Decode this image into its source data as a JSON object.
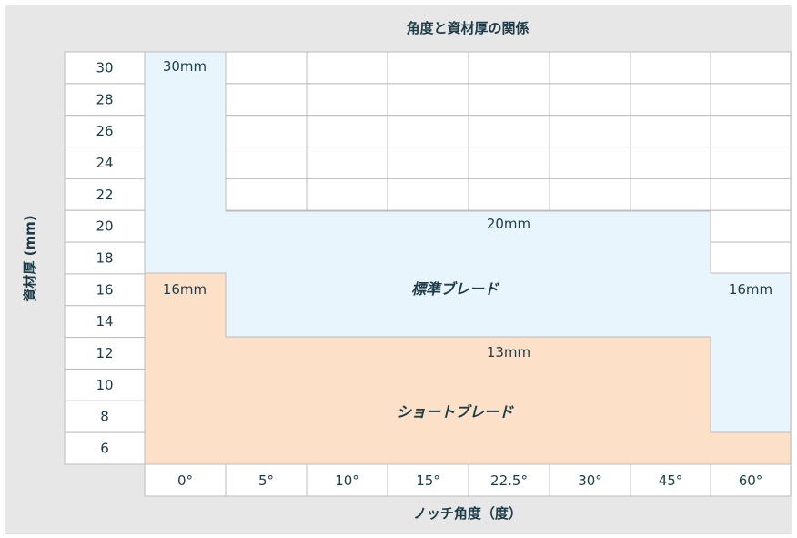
{
  "title": "角度と資材厚の関係",
  "y_axis_label": "資材厚 (mm)",
  "x_axis_label": "ノッチ角度（度）",
  "thickness_rows": [
    "30",
    "28",
    "26",
    "24",
    "22",
    "20",
    "18",
    "16",
    "14",
    "12",
    "10",
    "8",
    "6"
  ],
  "angle_columns": [
    "0°",
    "5°",
    "10°",
    "15°",
    "22.5°",
    "30°",
    "45°",
    "60°"
  ],
  "regions": {
    "standard_blade": {
      "label": "標準ブレード",
      "color": "#e8f5fd",
      "max_thickness_by_angle": {
        "0°": "30mm",
        "5°–45°": "20mm",
        "60°": "16mm"
      }
    },
    "short_blade": {
      "label": "ショートブレード",
      "color": "#fce1c8",
      "max_thickness_by_angle": {
        "0°": "16mm",
        "5°–45°": "13mm",
        "60°": "6mm"
      }
    }
  },
  "labels": {
    "l30": "30mm",
    "l20": "20mm",
    "l16a": "16mm",
    "l16b": "16mm",
    "l13": "13mm"
  }
}
